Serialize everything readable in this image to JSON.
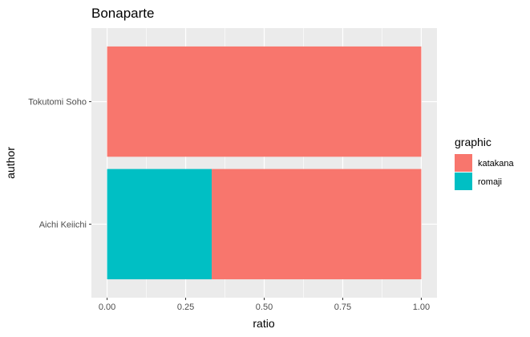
{
  "chart_data": {
    "type": "bar",
    "orientation": "horizontal",
    "stacked": true,
    "title": "Bonaparte",
    "xlabel": "ratio",
    "ylabel": "author",
    "xlim": [
      0,
      1
    ],
    "x_ticks": [
      "0.00",
      "0.25",
      "0.50",
      "0.75",
      "1.00"
    ],
    "categories": [
      "Aichi Keiichi",
      "Tokutomi Soho"
    ],
    "series": [
      {
        "name": "romaji",
        "color": "#00BFC4",
        "values": [
          0.333,
          0
        ]
      },
      {
        "name": "katakana",
        "color": "#F8766D",
        "values": [
          0.667,
          1.0
        ]
      }
    ],
    "legend": {
      "title": "graphic",
      "placement": "right",
      "entries": [
        {
          "label": "katakana",
          "color": "#F8766D"
        },
        {
          "label": "romaji",
          "color": "#00BFC4"
        }
      ]
    },
    "grid": true,
    "panel_background": "#EBEBEB"
  }
}
